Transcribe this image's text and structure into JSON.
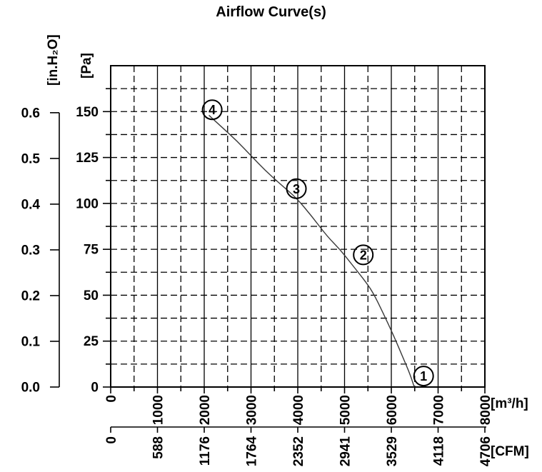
{
  "title": "Airflow Curve(s)",
  "colors": {
    "ink": "#000000",
    "background": "#ffffff",
    "curve": "#3a3a3a"
  },
  "chart_data": {
    "type": "line",
    "title": "Airflow Curve(s)",
    "grid": "dashed-minor-and-major",
    "x_axis_m3h": {
      "unit_label": "[m³/h]",
      "range": [
        0,
        8000
      ],
      "major_tick_labels": [
        "0",
        "1000",
        "2000",
        "3000",
        "4000",
        "5000",
        "6000",
        "7000",
        "8000"
      ],
      "major_tick_values": [
        0,
        1000,
        2000,
        3000,
        4000,
        5000,
        6000,
        7000,
        8000
      ],
      "minor_step": 500,
      "tick_label_rotation_deg": -90
    },
    "x_axis_cfm": {
      "unit_label": "[CFM]",
      "tick_labels": [
        "0",
        "588",
        "1176",
        "1764",
        "2352",
        "2941",
        "3529",
        "4118",
        "4706"
      ],
      "tick_values": [
        0,
        588,
        1176,
        1764,
        2352,
        2941,
        3529,
        4118,
        4706
      ],
      "tick_label_rotation_deg": -90
    },
    "y_axis_pa": {
      "unit_label": "[Pa]",
      "tick_labels": [
        "150",
        "125",
        "100",
        "75",
        "50",
        "25",
        "0"
      ],
      "tick_values": [
        150,
        125,
        100,
        75,
        50,
        25,
        0
      ],
      "grid_top_value": 175,
      "minor_step": 12.5
    },
    "y_axis_inh2o": {
      "unit_label": "[in.H₂O]",
      "tick_labels": [
        "0.6",
        "0.5",
        "0.4",
        "0.3",
        "0.2",
        "0.1",
        "0.0"
      ],
      "tick_values": [
        0.6,
        0.5,
        0.4,
        0.3,
        0.2,
        0.1,
        0.0
      ],
      "pa_per_inh2o": 249
    },
    "curve": {
      "name": "airflow-curve-1",
      "points_m3h_pa": [
        [
          2100,
          148
        ],
        [
          2400,
          141
        ],
        [
          2700,
          134
        ],
        [
          3000,
          126
        ],
        [
          3300,
          118
        ],
        [
          3650,
          110
        ],
        [
          3970,
          103
        ],
        [
          4300,
          93
        ],
        [
          4630,
          82
        ],
        [
          4900,
          75
        ],
        [
          5150,
          67
        ],
        [
          5400,
          59
        ],
        [
          5600,
          52
        ],
        [
          5830,
          40
        ],
        [
          6050,
          28
        ],
        [
          6250,
          16
        ],
        [
          6400,
          7
        ],
        [
          6490,
          0
        ]
      ]
    },
    "operating_points": [
      {
        "label": "1",
        "m3h": 6690,
        "pa": 6
      },
      {
        "label": "2",
        "m3h": 5400,
        "pa": 72
      },
      {
        "label": "3",
        "m3h": 3970,
        "pa": 108
      },
      {
        "label": "4",
        "m3h": 2170,
        "pa": 151
      }
    ]
  }
}
